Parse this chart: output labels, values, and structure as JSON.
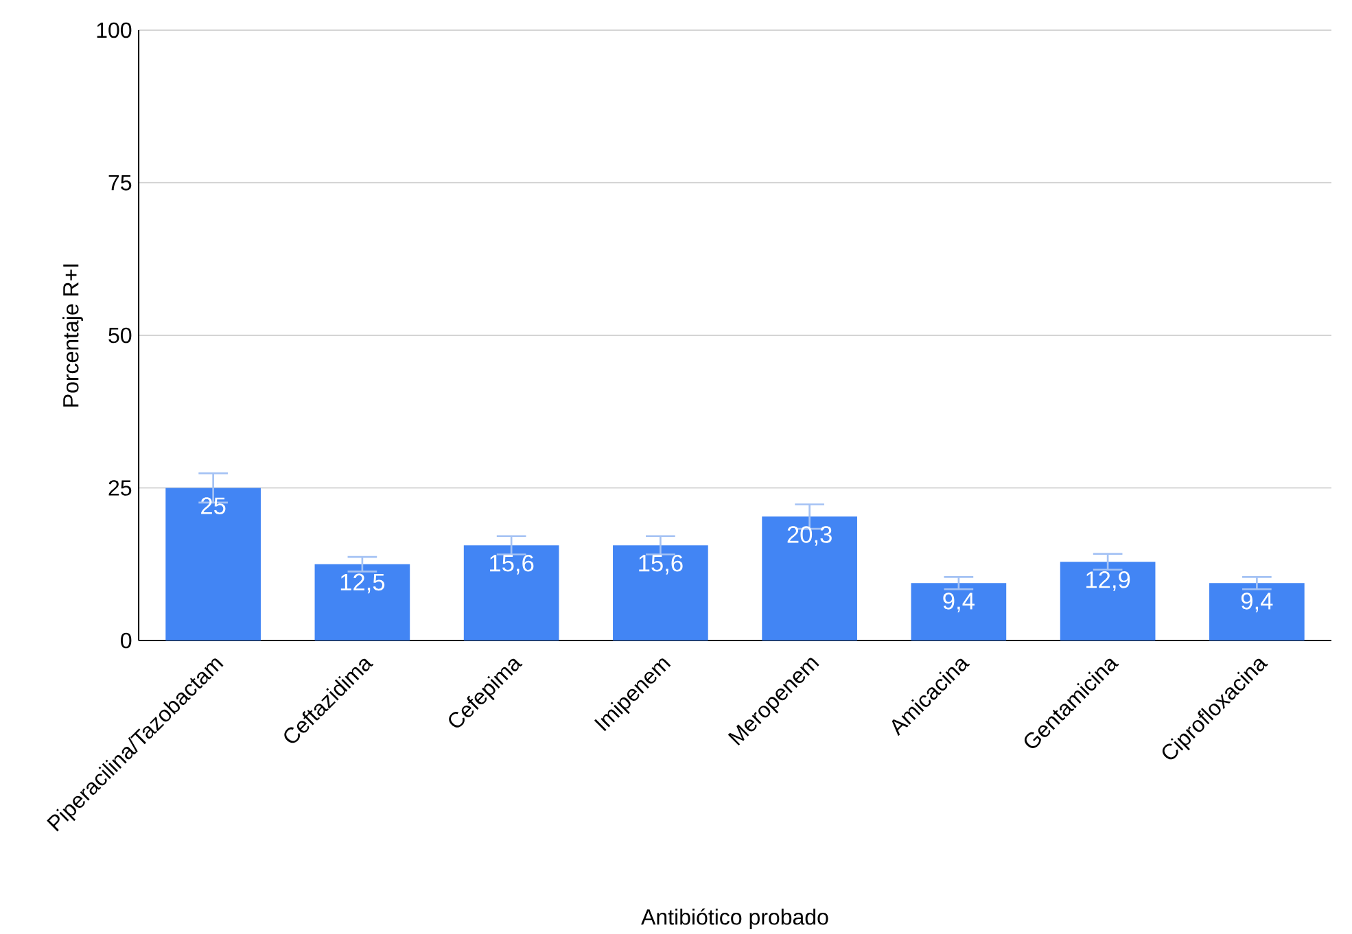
{
  "chart_data": {
    "type": "bar",
    "xlabel": "Antibiótico probado",
    "ylabel": "Porcentaje R+I",
    "categories": [
      "Piperacilina/Tazobactam",
      "Ceftazidima",
      "Cefepima",
      "Imipenem",
      "Meropenem",
      "Amicacina",
      "Gentamicina",
      "Ciprofloxacina"
    ],
    "values": [
      25,
      12.5,
      15.6,
      15.6,
      20.3,
      9.4,
      12.9,
      9.4
    ],
    "errors": [
      2.4,
      1.2,
      1.5,
      1.5,
      2.0,
      1.0,
      1.3,
      1.0
    ],
    "value_labels": [
      "25",
      "12,5",
      "15,6",
      "15,6",
      "20,3",
      "9,4",
      "12,9",
      "9,4"
    ],
    "color": "#4285f4",
    "ylim": [
      0,
      100
    ],
    "yticks": [
      0,
      25,
      50,
      75,
      100
    ],
    "grid": "y"
  }
}
